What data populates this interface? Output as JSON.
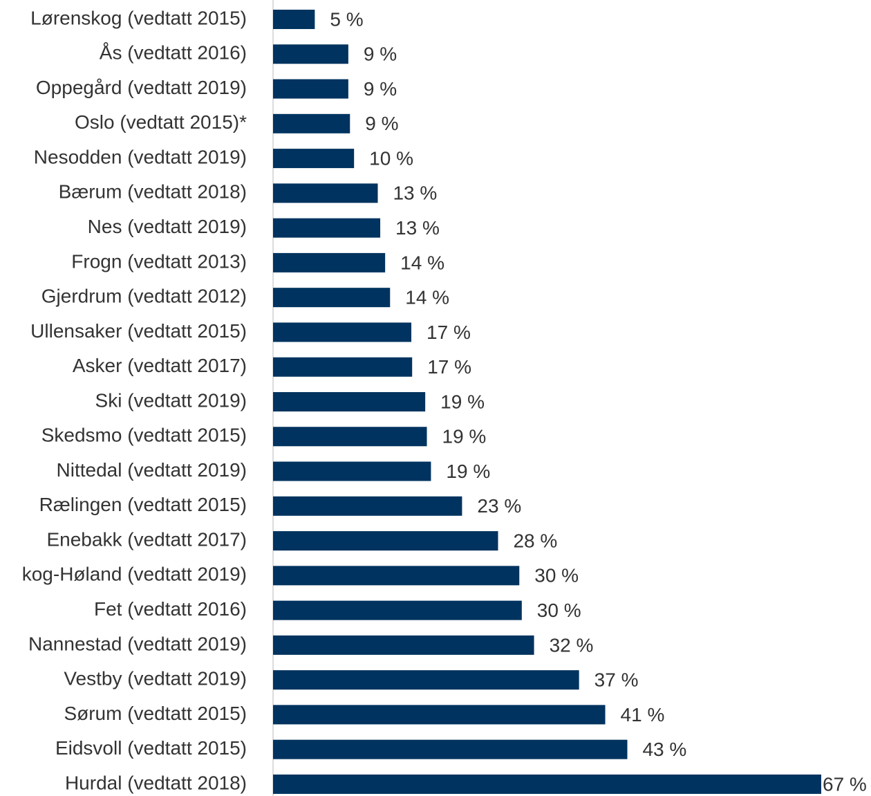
{
  "chart_data": {
    "type": "barh",
    "color": "#00335f",
    "categories": [
      "Lørenskog (vedtatt 2015)",
      "Ås (vedtatt 2016)",
      "Oppegård (vedtatt 2019)",
      "Oslo (vedtatt 2015)*",
      "Nesodden (vedtatt 2019)",
      "Bærum (vedtatt 2018)",
      "Nes (vedtatt 2019)",
      "Frogn (vedtatt 2013)",
      "Gjerdrum (vedtatt 2012)",
      "Ullensaker (vedtatt 2015)",
      "Asker (vedtatt 2017)",
      "Ski (vedtatt 2019)",
      "Skedsmo (vedtatt 2015)",
      "Nittedal (vedtatt 2019)",
      "Rælingen (vedtatt 2015)",
      "Enebakk (vedtatt 2017)",
      "kog-Høland (vedtatt 2019)",
      "Fet (vedtatt 2016)",
      "Nannestad (vedtatt 2019)",
      "Vestby (vedtatt 2019)",
      "Sørum (vedtatt 2015)",
      "Eidsvoll (vedtatt 2015)",
      "Hurdal (vedtatt 2018)"
    ],
    "values": [
      5.1,
      9.2,
      9.2,
      9.4,
      9.9,
      12.8,
      13.1,
      13.7,
      14.3,
      16.9,
      17.0,
      18.6,
      18.8,
      19.3,
      23.1,
      27.5,
      30.1,
      30.4,
      31.9,
      37.4,
      40.6,
      43.3,
      67.0
    ],
    "value_labels": [
      "5 %",
      "9 %",
      "9 %",
      "9 %",
      "10 %",
      "13 %",
      "13 %",
      "14 %",
      "14 %",
      "17 %",
      "17 %",
      "19 %",
      "19 %",
      "19 %",
      "23 %",
      "28 %",
      "30 %",
      "30 %",
      "32 %",
      "37 %",
      "41 %",
      "43 %",
      "67 %"
    ],
    "xlim": [
      0,
      67
    ]
  }
}
